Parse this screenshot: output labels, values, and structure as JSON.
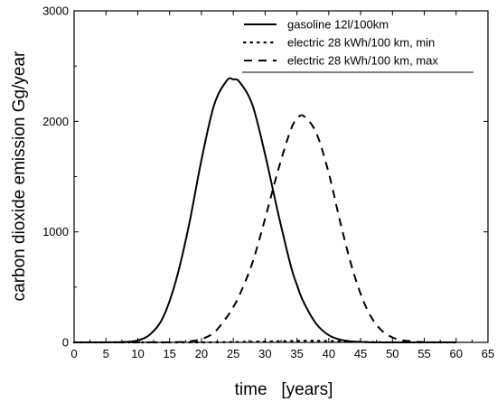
{
  "chart_data": {
    "type": "line",
    "xlabel": "time   [years]",
    "ylabel": "carbon dioxide emission   Gg/year",
    "xlim": [
      0,
      65
    ],
    "ylim": [
      0,
      3000
    ],
    "xticks": [
      0,
      5,
      10,
      15,
      20,
      25,
      30,
      35,
      40,
      45,
      50,
      55,
      60,
      65
    ],
    "yticks": [
      0,
      1000,
      2000,
      3000
    ],
    "grid": false,
    "legend_position": "top-right",
    "x": [
      0,
      2,
      4,
      6,
      8,
      10,
      12,
      14,
      16,
      18,
      20,
      22,
      24,
      25,
      26,
      28,
      30,
      32,
      34,
      35,
      36,
      38,
      40,
      42,
      44,
      46,
      48,
      50,
      52,
      54,
      56,
      58,
      60
    ],
    "series": [
      {
        "name": "gasoline 12l/100km",
        "style": "solid",
        "values": [
          0,
          0,
          0,
          1,
          4,
          18,
          75,
          230,
          560,
          1050,
          1650,
          2150,
          2370,
          2380,
          2355,
          2150,
          1700,
          1180,
          700,
          520,
          370,
          170,
          65,
          22,
          7,
          2,
          0,
          0,
          0,
          0,
          0,
          0,
          0
        ]
      },
      {
        "name": "electric 28 kWh/100 km, min",
        "style": "dotted",
        "values": [
          0,
          0,
          0,
          0,
          0,
          0,
          0,
          0,
          0,
          0,
          0,
          1,
          2,
          3,
          4,
          6,
          8,
          10,
          12,
          13,
          14,
          14,
          12,
          9,
          6,
          3,
          1,
          0,
          0,
          0,
          0,
          0,
          0
        ]
      },
      {
        "name": "electric 28 kWh/100 km, max",
        "style": "dashed",
        "values": [
          0,
          0,
          0,
          0,
          0,
          0,
          0,
          0,
          2,
          8,
          30,
          90,
          230,
          320,
          430,
          720,
          1120,
          1550,
          1920,
          2020,
          2050,
          1900,
          1530,
          1040,
          610,
          300,
          125,
          45,
          15,
          5,
          1,
          0,
          0
        ]
      }
    ]
  }
}
